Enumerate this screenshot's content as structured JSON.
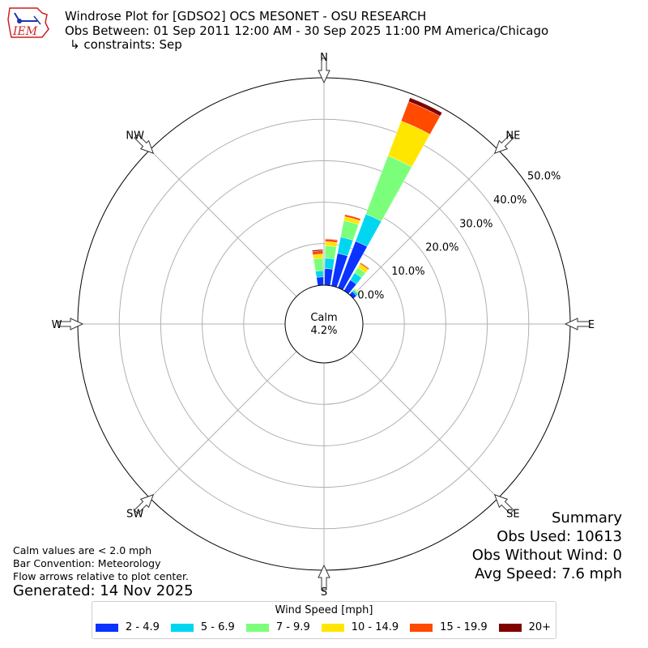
{
  "header": {
    "title": "Windrose Plot for [GDSO2] OCS MESONET - OSU RESEARCH",
    "obs_between": "Obs Between: 01 Sep 2011 12:00 AM - 30 Sep 2025 11:00 PM America/Chicago",
    "constraints": "↳ constraints: Sep"
  },
  "logo": {
    "text": "IEM",
    "color": "#cc2222",
    "accent": "#2233aa"
  },
  "chart_data": {
    "type": "windrose",
    "directions": [
      "N",
      "NE",
      "E",
      "SE",
      "S",
      "SW",
      "W",
      "NW"
    ],
    "radial_ticks": [
      "0.0%",
      "10.0%",
      "20.0%",
      "30.0%",
      "40.0%",
      "50.0%"
    ],
    "radial_max": 50,
    "calm": {
      "label": "Calm",
      "value": "4.2%"
    },
    "speed_bins": [
      {
        "label": "2 - 4.9",
        "color": "#0a33ff"
      },
      {
        "label": "5 - 6.9",
        "color": "#00d6f0"
      },
      {
        "label": "7 - 9.9",
        "color": "#7bff7b"
      },
      {
        "label": "10 - 14.9",
        "color": "#ffe600"
      },
      {
        "label": "15 - 19.9",
        "color": "#ff4a00"
      },
      {
        "label": "20+",
        "color": "#800000"
      }
    ],
    "petals": [
      {
        "dir": 355,
        "values": [
          2.0,
          1.5,
          3.0,
          1.0,
          0.8,
          0.3
        ]
      },
      {
        "dir": 5,
        "values": [
          4.0,
          2.5,
          3.0,
          1.0,
          0.6,
          0.1
        ]
      },
      {
        "dir": 15,
        "values": [
          8.0,
          4.0,
          4.0,
          1.0,
          0.5,
          0.0
        ]
      },
      {
        "dir": 25,
        "values": [
          12.0,
          7.0,
          15.0,
          9.0,
          5.0,
          1.0
        ]
      },
      {
        "dir": 35,
        "values": [
          3.0,
          2.0,
          1.5,
          1.0,
          0.3,
          0.1
        ]
      },
      {
        "dir": 45,
        "values": [
          1.0,
          0.5,
          0.3,
          0.2,
          0.0,
          0.0
        ]
      }
    ]
  },
  "legend_title": "Wind Speed [mph]",
  "notes": {
    "calm": "Calm values are < 2.0 mph",
    "bar_convention": "Bar Convention: Meteorology",
    "flow": "Flow arrows relative to plot center.",
    "generated": "Generated: 14 Nov 2025"
  },
  "summary": {
    "title": "Summary",
    "obs_used": "Obs Used: 10613",
    "obs_without_wind": "Obs Without Wind: 0",
    "avg_speed": "Avg Speed: 7.6 mph"
  }
}
